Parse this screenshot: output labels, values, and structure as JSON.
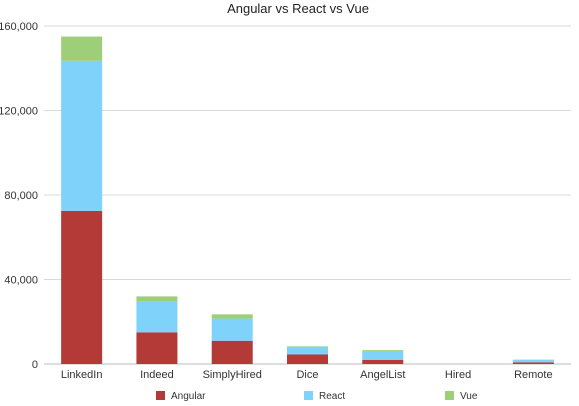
{
  "chart_data": {
    "type": "bar",
    "stacked": true,
    "title": "Angular vs React vs Vue",
    "xlabel": "",
    "ylabel": "",
    "categories": [
      "LinkedIn",
      "Indeed",
      "SimplyHired",
      "Dice",
      "AngelList",
      "Hired",
      "Remote"
    ],
    "series": [
      {
        "name": "Angular",
        "color": "#b33a36",
        "values": [
          72500,
          15000,
          11000,
          4500,
          2000,
          0,
          800
        ]
      },
      {
        "name": "React",
        "color": "#7fd3fb",
        "values": [
          71000,
          14500,
          10500,
          3700,
          4200,
          0,
          1200
        ]
      },
      {
        "name": "Vue",
        "color": "#9ccf77",
        "values": [
          11500,
          2500,
          2000,
          200,
          400,
          0,
          100
        ]
      }
    ],
    "ylim": [
      0,
      160000
    ],
    "yticks": [
      0,
      40000,
      80000,
      120000,
      160000
    ],
    "ytick_labels": [
      "0",
      "40,000",
      "80,000",
      "120,000",
      "160,000"
    ],
    "grid": true,
    "legend_position": "bottom"
  }
}
